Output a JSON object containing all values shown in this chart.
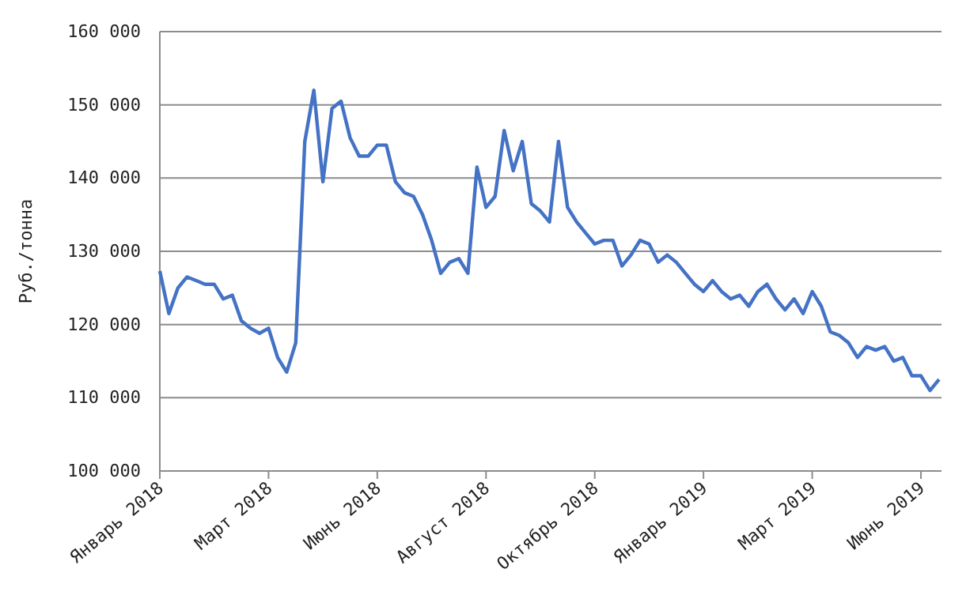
{
  "chart_data": {
    "type": "line",
    "ylabel": "Руб./тонна",
    "categories": [
      "Январь 2018",
      null,
      null,
      null,
      null,
      null,
      null,
      null,
      null,
      null,
      null,
      null,
      "Март 2018",
      null,
      null,
      null,
      null,
      null,
      null,
      null,
      null,
      null,
      null,
      null,
      "Июнь 2018",
      null,
      null,
      null,
      null,
      null,
      null,
      null,
      null,
      null,
      null,
      null,
      "Август 2018",
      null,
      null,
      null,
      null,
      null,
      null,
      null,
      null,
      null,
      null,
      null,
      "Октябрь 2018",
      null,
      null,
      null,
      null,
      null,
      null,
      null,
      null,
      null,
      null,
      null,
      "Январь 2019",
      null,
      null,
      null,
      null,
      null,
      null,
      null,
      null,
      null,
      null,
      null,
      "Март 2019",
      null,
      null,
      null,
      null,
      null,
      null,
      null,
      null,
      null,
      null,
      null,
      "Июнь 2019",
      null,
      null
    ],
    "series": [
      {
        "color": "#4472c4",
        "values": [
          127300,
          121500,
          125000,
          126500,
          126000,
          125500,
          125500,
          123500,
          124000,
          120500,
          119500,
          118800,
          119500,
          115500,
          113500,
          117500,
          145000,
          152000,
          139500,
          149500,
          150500,
          145500,
          143000,
          143000,
          144500,
          144500,
          139500,
          138000,
          137500,
          135000,
          131500,
          127000,
          128500,
          129000,
          127000,
          141500,
          136000,
          137500,
          146500,
          141000,
          145000,
          136500,
          135500,
          134000,
          145000,
          136000,
          134000,
          132500,
          131000,
          131500,
          131500,
          128000,
          129500,
          131500,
          131000,
          128500,
          129500,
          128500,
          127000,
          125500,
          124500,
          126000,
          124500,
          123500,
          124000,
          122500,
          124500,
          125500,
          123500,
          122000,
          123500,
          121500,
          124500,
          122500,
          119000,
          118500,
          117500,
          115500,
          117000,
          116500,
          117000,
          115000,
          115500,
          113000,
          113000,
          111000,
          112500
        ]
      }
    ],
    "ylim": [
      100000,
      160000
    ],
    "yticks": [
      {
        "value": 100000,
        "label": "100 000"
      },
      {
        "value": 110000,
        "label": "110 000"
      },
      {
        "value": 120000,
        "label": "120 000"
      },
      {
        "value": 130000,
        "label": "130 000"
      },
      {
        "value": 140000,
        "label": "140 000"
      },
      {
        "value": 150000,
        "label": "150 000"
      },
      {
        "value": 160000,
        "label": "160 000"
      }
    ],
    "grid": "y",
    "marker": "none",
    "line_style": "solid"
  }
}
